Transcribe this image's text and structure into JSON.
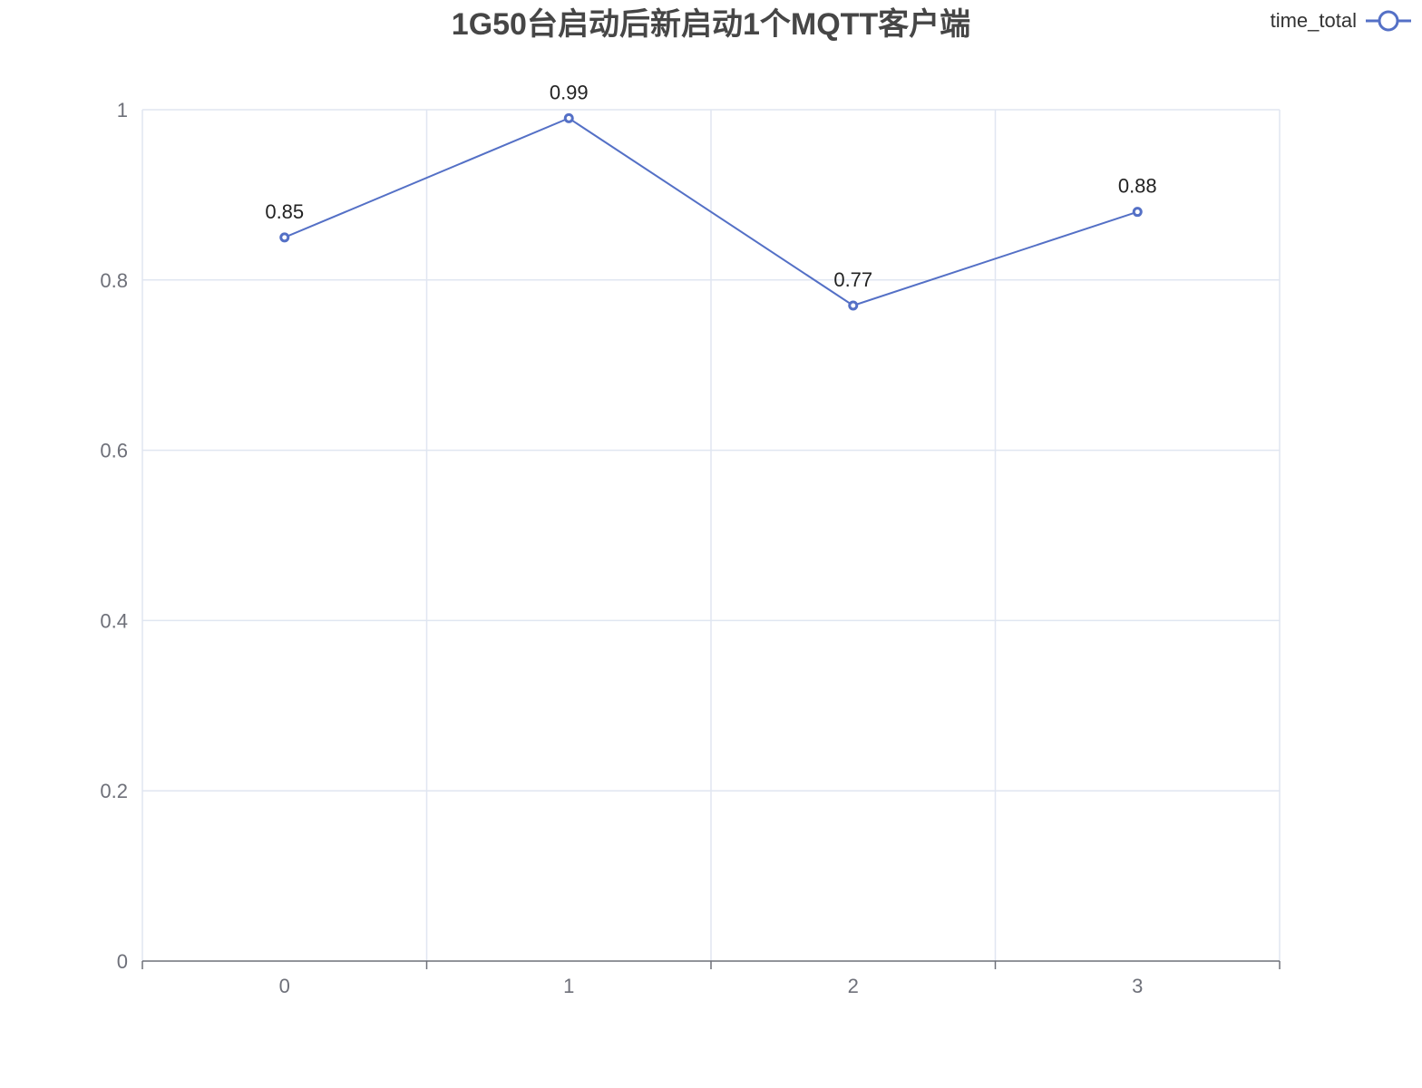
{
  "chart_data": {
    "type": "line",
    "title": "1G50台启动后新启动1个MQTT客户端",
    "categories": [
      "0",
      "1",
      "2",
      "3"
    ],
    "series": [
      {
        "name": "time_total",
        "values": [
          0.85,
          0.99,
          0.77,
          0.88
        ],
        "color": "#5470c6"
      }
    ],
    "data_labels": [
      "0.85",
      "0.99",
      "0.77",
      "0.88"
    ],
    "ylim": [
      0,
      1
    ],
    "y_ticks": [
      0,
      0.2,
      0.4,
      0.6,
      0.8,
      1
    ],
    "y_tick_labels": [
      "0",
      "0.2",
      "0.4",
      "0.6",
      "0.8",
      "1"
    ],
    "grid": true,
    "legend_position": "top-right"
  },
  "colors": {
    "series": "#5470c6",
    "grid": "#e0e6f1",
    "axis": "#6e7079"
  }
}
